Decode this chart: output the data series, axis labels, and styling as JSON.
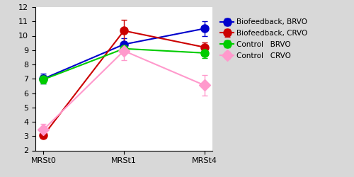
{
  "x_labels": [
    "MRSt0",
    "MRSt1",
    "MRSt4"
  ],
  "x_positions": [
    0,
    1,
    2
  ],
  "series": [
    {
      "label": "Biofeedback, BRVO",
      "color": "#0000cc",
      "marker": "o",
      "values": [
        7.0,
        9.4,
        10.5
      ],
      "errors": [
        0.35,
        0.45,
        0.52
      ]
    },
    {
      "label": "Biofeedback, CRVO",
      "color": "#cc0000",
      "marker": "o",
      "values": [
        3.05,
        10.35,
        9.2
      ],
      "errors": [
        0.2,
        0.75,
        0.35
      ]
    },
    {
      "label": "Control   BRVO",
      "color": "#00cc00",
      "marker": "o",
      "values": [
        6.95,
        9.1,
        8.8
      ],
      "errors": [
        0.3,
        0.35,
        0.35
      ]
    },
    {
      "label": "Control   CRVO",
      "color": "#ff99cc",
      "marker": "D",
      "values": [
        3.45,
        8.95,
        6.55
      ],
      "errors": [
        0.4,
        0.65,
        0.72
      ]
    }
  ],
  "ylim": [
    2,
    12
  ],
  "yticks": [
    2,
    3,
    4,
    5,
    6,
    7,
    8,
    9,
    10,
    11,
    12
  ],
  "background_color": "#d8d8d8",
  "plot_bg_color": "#ffffff",
  "figsize": [
    5.0,
    2.5
  ],
  "dpi": 100,
  "markersize": 8,
  "linewidth": 1.5,
  "capsize": 3,
  "legend_fontsize": 7.5,
  "tick_fontsize": 8,
  "xlabel_fontsize": 8
}
